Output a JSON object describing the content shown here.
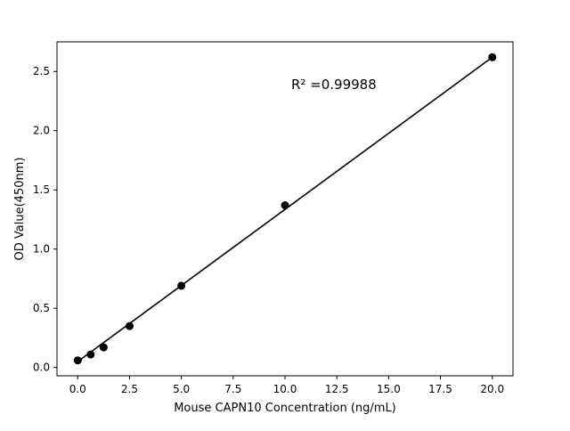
{
  "figure": {
    "background": "#ffffff"
  },
  "chart_data": {
    "type": "scatter",
    "title": "",
    "xlabel": "Mouse CAPN10 Concentration (ng/mL)",
    "ylabel": "OD Value(450nm)",
    "annotation": {
      "text": "R² =0.99988",
      "x": 10.3,
      "y": 2.35
    },
    "points": {
      "x": [
        0,
        0.625,
        1.25,
        2.5,
        5,
        10,
        20
      ],
      "y": [
        0.06,
        0.11,
        0.17,
        0.35,
        0.69,
        1.37,
        2.62
      ]
    },
    "fit_line": {
      "x": [
        0,
        20
      ],
      "y": [
        0.05,
        2.62
      ]
    },
    "xlim": [
      -1,
      21
    ],
    "ylim": [
      -0.07,
      2.75
    ],
    "xticks": [
      0,
      2.5,
      5,
      7.5,
      10,
      12.5,
      15,
      17.5,
      20
    ],
    "xtick_labels": [
      "0.0",
      "2.5",
      "5.0",
      "7.5",
      "10.0",
      "12.5",
      "15.0",
      "17.5",
      "20.0"
    ],
    "yticks": [
      0,
      0.5,
      1.0,
      1.5,
      2.0,
      2.5
    ],
    "ytick_labels": [
      "0.0",
      "0.5",
      "1.0",
      "1.5",
      "2.0",
      "2.5"
    ],
    "grid": false,
    "legend": null,
    "marker_color": "#000000",
    "line_color": "#000000",
    "frame_color": "#000000"
  }
}
